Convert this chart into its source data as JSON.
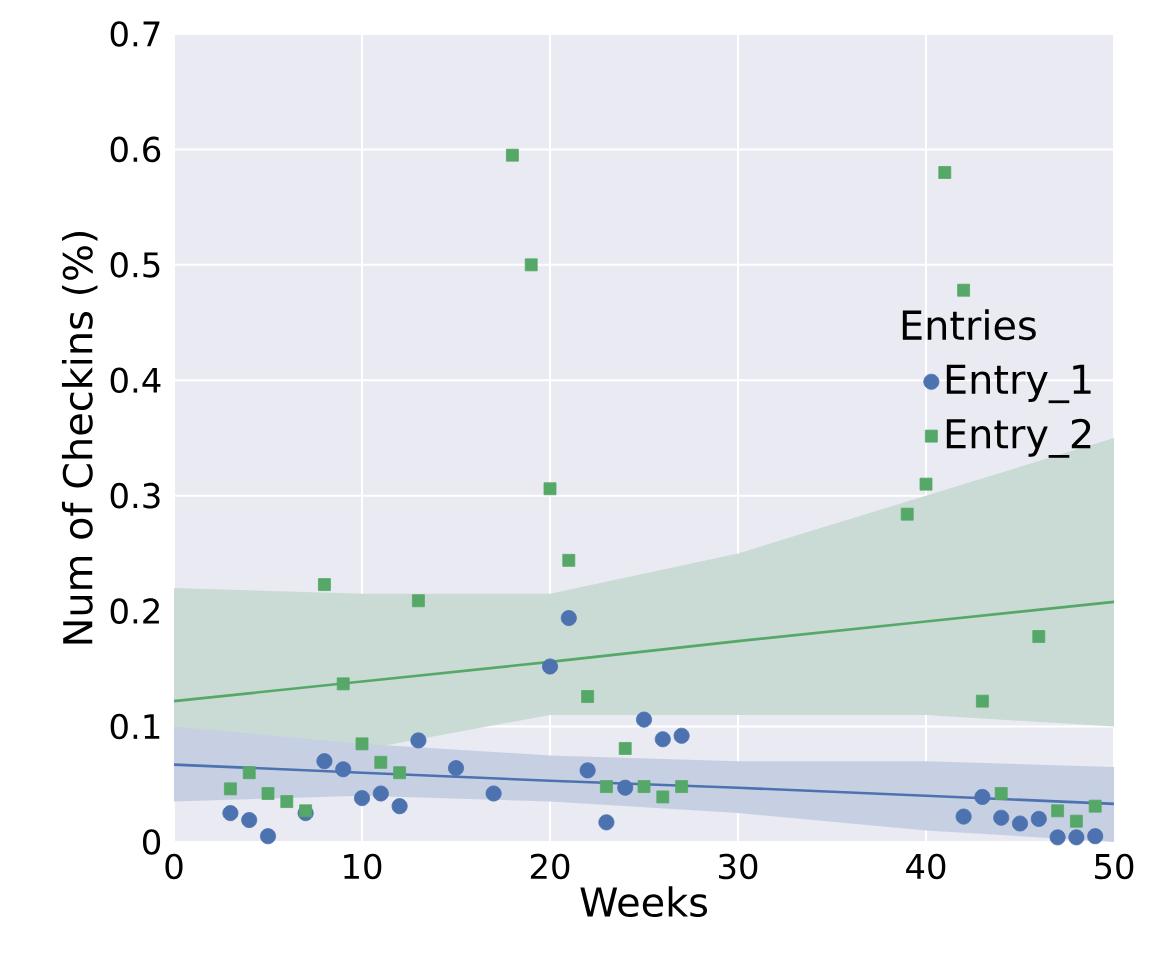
{
  "chart_data": {
    "type": "scatter",
    "xlabel": "Weeks",
    "ylabel": "Num of Checkins (%)",
    "legend_title": "Entries",
    "legend": "right",
    "grid": true,
    "xlim": [
      0,
      50
    ],
    "xticks": [
      0,
      10,
      20,
      30,
      40,
      50
    ],
    "ylim": [
      0,
      0.7
    ],
    "yticks": [
      0,
      0.1,
      0.2,
      0.3,
      0.4,
      0.5,
      0.6,
      0.7
    ],
    "series": [
      {
        "name": "Entry_1",
        "color": "#4c72b0",
        "marker": "circle",
        "x": [
          3,
          4,
          5,
          7,
          8,
          9,
          10,
          11,
          12,
          13,
          15,
          17,
          20,
          21,
          22,
          23,
          24,
          25,
          26,
          27,
          42,
          43,
          44,
          45,
          46,
          47,
          48,
          49
        ],
        "values": [
          0.025,
          0.019,
          0.005,
          0.025,
          0.07,
          0.063,
          0.038,
          0.042,
          0.031,
          0.088,
          0.064,
          0.042,
          0.152,
          0.194,
          0.062,
          0.017,
          0.047,
          0.106,
          0.089,
          0.092,
          0.022,
          0.039,
          0.021,
          0.016,
          0.02,
          0.004,
          0.004,
          0.005
        ]
      },
      {
        "name": "Entry_2",
        "color": "#55a868",
        "marker": "square",
        "x": [
          3,
          4,
          5,
          6,
          7,
          8,
          9,
          10,
          11,
          12,
          13,
          18,
          19,
          20,
          21,
          22,
          23,
          24,
          25,
          26,
          27,
          39,
          40,
          41,
          42,
          43,
          44,
          46,
          47,
          48,
          49
        ],
        "values": [
          0.046,
          0.06,
          0.042,
          0.035,
          0.027,
          0.223,
          0.137,
          0.085,
          0.069,
          0.06,
          0.209,
          0.595,
          0.5,
          0.306,
          0.244,
          0.126,
          0.048,
          0.081,
          0.048,
          0.039,
          0.048,
          0.284,
          0.31,
          0.58,
          0.478,
          0.122,
          0.042,
          0.178,
          0.027,
          0.018,
          0.031
        ]
      },
      {
        "type": "line",
        "color": "#55a868",
        "marker": "none",
        "x": [
          0,
          10,
          20,
          30,
          40,
          50
        ],
        "values": [
          0.122,
          0.139,
          0.156,
          0.174,
          0.191,
          0.208
        ],
        "lower": [
          0.04,
          0.08,
          0.11,
          0.11,
          0.11,
          0.1
        ],
        "upper": [
          0.22,
          0.215,
          0.215,
          0.25,
          0.3,
          0.35
        ]
      },
      {
        "type": "line",
        "color": "#4c72b0",
        "marker": "none",
        "x": [
          0,
          10,
          20,
          30,
          40,
          50
        ],
        "values": [
          0.067,
          0.06,
          0.053,
          0.047,
          0.04,
          0.033
        ],
        "lower": [
          0.035,
          0.04,
          0.035,
          0.025,
          0.01,
          0.0
        ],
        "upper": [
          0.1,
          0.085,
          0.075,
          0.07,
          0.07,
          0.065
        ]
      }
    ]
  }
}
